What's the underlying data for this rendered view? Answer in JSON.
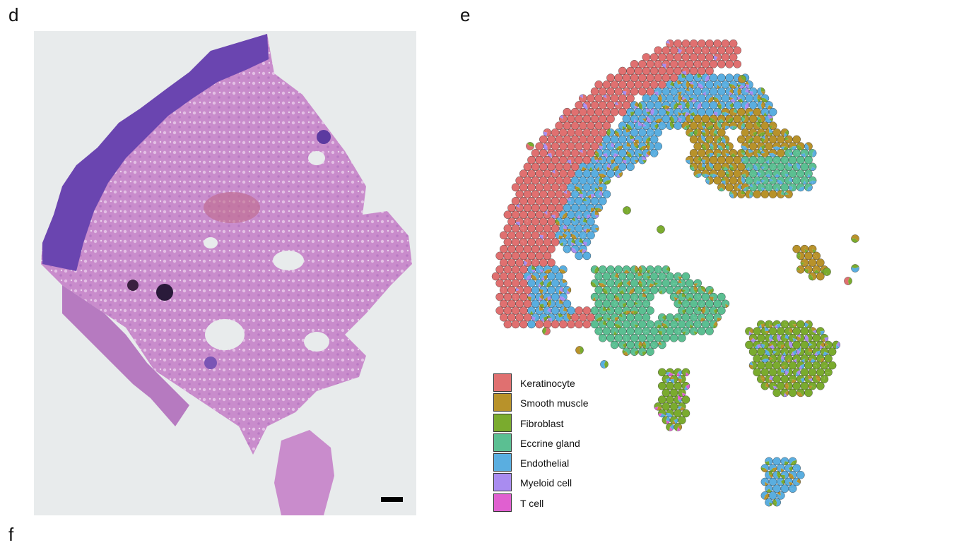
{
  "panels": {
    "d": {
      "letter": "d"
    },
    "e": {
      "letter": "e"
    },
    "f": {
      "letter": "f"
    }
  },
  "legend": {
    "items": [
      {
        "label": "Keratinocyte",
        "color": "#e07070"
      },
      {
        "label": "Smooth muscle",
        "color": "#b8922a"
      },
      {
        "label": "Fibroblast",
        "color": "#7aab2e"
      },
      {
        "label": "Eccrine gland",
        "color": "#5bbf92"
      },
      {
        "label": "Endothelial",
        "color": "#5aaee0"
      },
      {
        "label": "Myeloid cell",
        "color": "#a98cf0"
      },
      {
        "label": "T cell",
        "color": "#e060d0"
      }
    ]
  },
  "colors": {
    "histology_background": "#e8ebec",
    "tissue_pink": "#c98ccc",
    "tissue_purple": "#6a45b0",
    "scale_bar": "#000000"
  }
}
